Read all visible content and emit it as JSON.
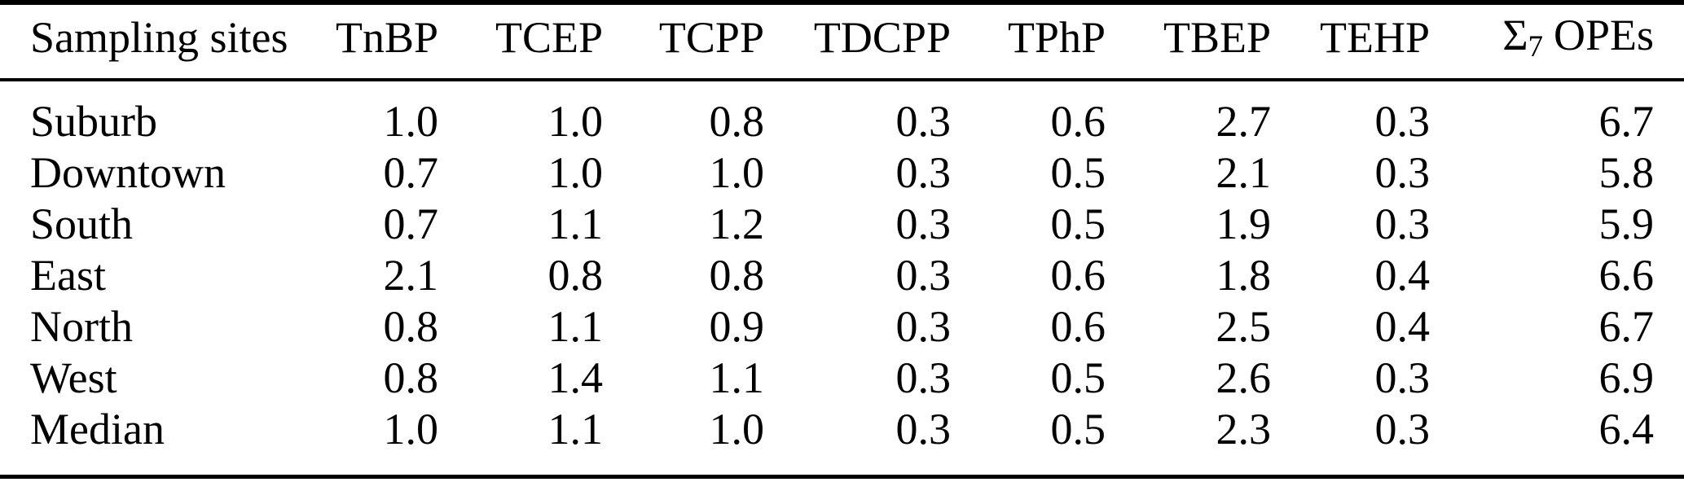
{
  "colors": {
    "background": "#ffffff",
    "text": "#000000",
    "rule": "#000000"
  },
  "table": {
    "columns": [
      {
        "label": "Sampling sites"
      },
      {
        "label": "TnBP"
      },
      {
        "label": "TCEP"
      },
      {
        "label": "TCPP"
      },
      {
        "label": "TDCPP"
      },
      {
        "label": "TPhP"
      },
      {
        "label": "TBEP"
      },
      {
        "label": "TEHP"
      },
      {
        "label": "Σ7 OPEs",
        "symbol": "Σ",
        "subscript": "7",
        "suffix": "OPEs"
      }
    ],
    "rows": [
      {
        "site": "Suburb",
        "values": [
          "1.0",
          "1.0",
          "0.8",
          "0.3",
          "0.6",
          "2.7",
          "0.3",
          "6.7"
        ]
      },
      {
        "site": "Downtown",
        "values": [
          "0.7",
          "1.0",
          "1.0",
          "0.3",
          "0.5",
          "2.1",
          "0.3",
          "5.8"
        ]
      },
      {
        "site": "South",
        "values": [
          "0.7",
          "1.1",
          "1.2",
          "0.3",
          "0.5",
          "1.9",
          "0.3",
          "5.9"
        ]
      },
      {
        "site": "East",
        "values": [
          "2.1",
          "0.8",
          "0.8",
          "0.3",
          "0.6",
          "1.8",
          "0.4",
          "6.6"
        ]
      },
      {
        "site": "North",
        "values": [
          "0.8",
          "1.1",
          "0.9",
          "0.3",
          "0.6",
          "2.5",
          "0.4",
          "6.7"
        ]
      },
      {
        "site": "West",
        "values": [
          "0.8",
          "1.4",
          "1.1",
          "0.3",
          "0.5",
          "2.6",
          "0.3",
          "6.9"
        ]
      },
      {
        "site": "Median",
        "values": [
          "1.0",
          "1.1",
          "1.0",
          "0.3",
          "0.5",
          "2.3",
          "0.3",
          "6.4"
        ]
      }
    ]
  },
  "chart_data": {
    "type": "table",
    "columns": [
      "Sampling sites",
      "TnBP",
      "TCEP",
      "TCPP",
      "TDCPP",
      "TPhP",
      "TBEP",
      "TEHP",
      "Σ7 OPEs"
    ],
    "rows": [
      [
        "Suburb",
        1.0,
        1.0,
        0.8,
        0.3,
        0.6,
        2.7,
        0.3,
        6.7
      ],
      [
        "Downtown",
        0.7,
        1.0,
        1.0,
        0.3,
        0.5,
        2.1,
        0.3,
        5.8
      ],
      [
        "South",
        0.7,
        1.1,
        1.2,
        0.3,
        0.5,
        1.9,
        0.3,
        5.9
      ],
      [
        "East",
        2.1,
        0.8,
        0.8,
        0.3,
        0.6,
        1.8,
        0.4,
        6.6
      ],
      [
        "North",
        0.8,
        1.1,
        0.9,
        0.3,
        0.6,
        2.5,
        0.4,
        6.7
      ],
      [
        "West",
        0.8,
        1.4,
        1.1,
        0.3,
        0.5,
        2.6,
        0.3,
        6.9
      ],
      [
        "Median",
        1.0,
        1.1,
        1.0,
        0.3,
        0.5,
        2.3,
        0.3,
        6.4
      ]
    ]
  }
}
